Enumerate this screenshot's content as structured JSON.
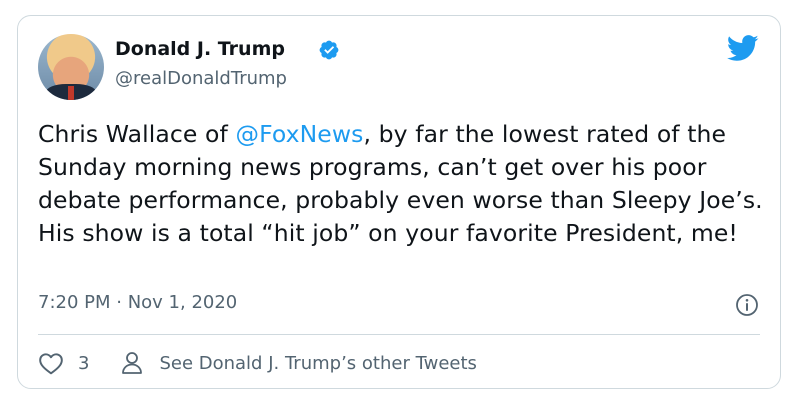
{
  "tweet": {
    "author_name": "Donald J. Trump",
    "author_handle": "@realDonaldTrump",
    "text_before_mention": "Chris Wallace of ",
    "mention": "@FoxNews",
    "text_after_mention": ", by far the lowest rated of the Sunday morning news programs, can’t get over his poor debate performance, probably even worse than Sleepy Joe’s. His show is a total “hit job” on your favorite President, me!",
    "timestamp": "7:20 PM · Nov 1, 2020",
    "like_count": "3",
    "see_more_label": "See Donald J. Trump’s other Tweets"
  },
  "icons": {
    "verified": "verified-badge-icon",
    "bird": "twitter-bird-icon",
    "info": "info-icon",
    "heart": "heart-icon",
    "person": "person-icon"
  },
  "colors": {
    "accent": "#1d9bf0",
    "text": "#0f1419",
    "muted": "#536471",
    "border": "#cfd9de"
  }
}
